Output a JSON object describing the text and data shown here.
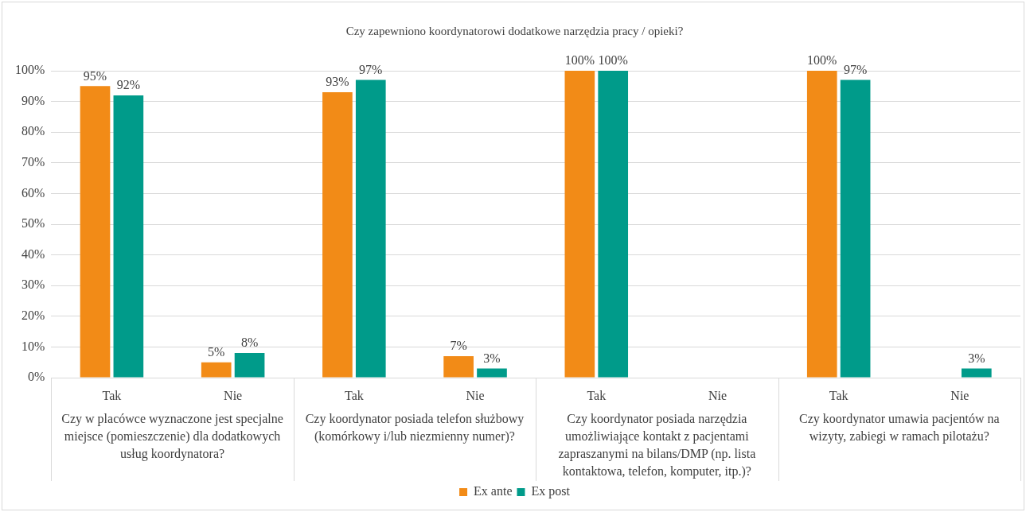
{
  "chart_data": {
    "type": "bar",
    "title": "Czy zapewniono koordynatorowi dodatkowe narzędzia pracy / opieki?",
    "categories": [
      "Tak",
      "Nie",
      "Tak",
      "Nie",
      "Tak",
      "Nie",
      "Tak",
      "Nie"
    ],
    "series": [
      {
        "name": "Ex ante",
        "color": "#f28b17",
        "values": [
          95,
          5,
          93,
          7,
          100,
          null,
          100,
          null
        ],
        "value_labels": [
          "95%",
          "5%",
          "93%",
          "7%",
          "100%",
          null,
          "100%",
          null
        ]
      },
      {
        "name": "Ex post",
        "color": "#009b8a",
        "values": [
          92,
          8,
          97,
          3,
          100,
          null,
          97,
          3
        ],
        "value_labels": [
          "92%",
          "8%",
          "97%",
          "3%",
          "100%",
          null,
          "97%",
          "3%"
        ]
      }
    ],
    "annotations": [
      "Czy w placówce wyznaczone jest specjalne miejsce (pomieszczenie) dla dodatkowych usług koordynatora?",
      "Czy koordynator posiada telefon służbowy (komórkowy i/lub niezmienny numer)?",
      "Czy koordynator posiada narzędzia umożliwiające kontakt z pacjentami zapraszanymi na bilans/DMP (np. lista kontaktowa, telefon, komputer, itp.)?",
      "Czy koordynator umawia pacjentów na wizyty, zabiegi w ramach pilotażu?"
    ],
    "ylim": [
      0,
      100
    ],
    "yticks": [
      {
        "value": 0,
        "label": "0%"
      },
      {
        "value": 10,
        "label": "10%"
      },
      {
        "value": 20,
        "label": "20%"
      },
      {
        "value": 30,
        "label": "30%"
      },
      {
        "value": 40,
        "label": "40%"
      },
      {
        "value": 50,
        "label": "50%"
      },
      {
        "value": 60,
        "label": "60%"
      },
      {
        "value": 70,
        "label": "70%"
      },
      {
        "value": 80,
        "label": "80%"
      },
      {
        "value": 90,
        "label": "90%"
      },
      {
        "value": 100,
        "label": "100%"
      }
    ],
    "grid": "y",
    "legend": "bottom"
  }
}
